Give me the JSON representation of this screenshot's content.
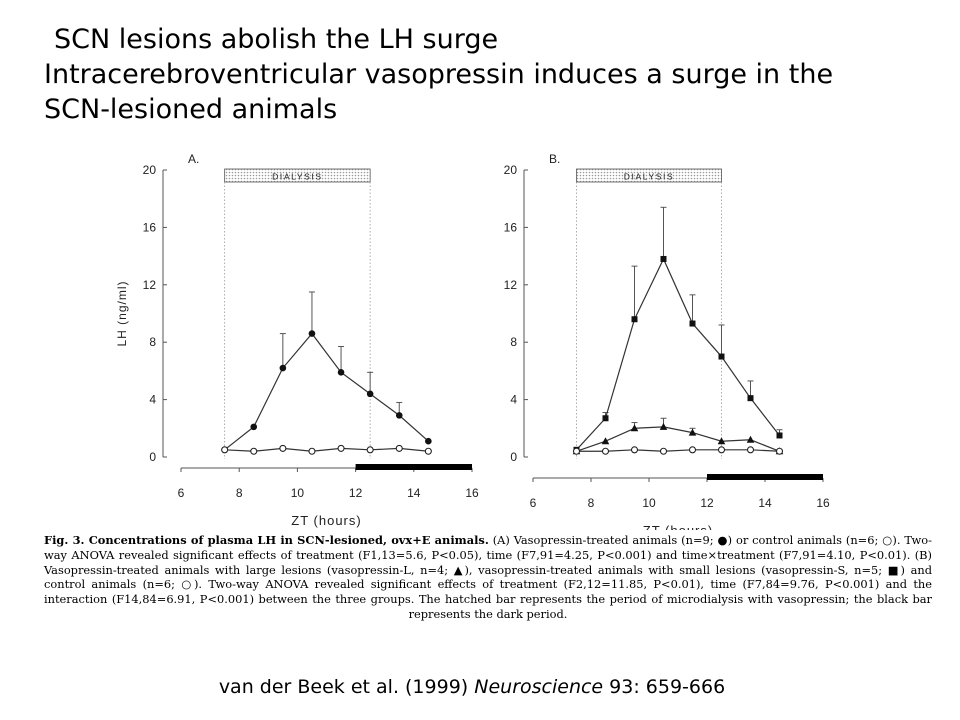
{
  "slide": {
    "title_line1": "SCN lesions abolish the LH surge",
    "title_line2": "Intracerebroventricular vasopressin induces a surge in the",
    "title_line3": "SCN-lesioned animals"
  },
  "caption": {
    "lead": "Fig. 3. Concentrations of plasma LH in SCN-lesioned, ovx+E animals.",
    "body": "(A) Vasopressin-treated animals (n=9; ●) or control animals (n=6; ○). Two-way ANOVA revealed significant effects of treatment (F1,13=5.6, P<0.05), time (F7,91=4.25, P<0.001) and time×treatment (F7,91=4.10, P<0.01). (B) Vasopressin-treated animals with large lesions (vasopressin-L, n=4; ▲), vasopressin-treated animals with small lesions (vasopressin-S, n=5; ■) and control animals (n=6; ○). Two-way ANOVA revealed significant effects of treatment (F2,12=11.85, P<0.01), time (F7,84=9.76, P<0.001) and the interaction (F14,84=6.91, P<0.001) between the three groups. The hatched bar represents the period of microdialysis with vasopressin; the black bar represents the dark period."
  },
  "citation": {
    "authors": "van der Beek et al. (1999) ",
    "journal": "Neuroscience",
    "ref": " 93: 659-666"
  },
  "chart_data": [
    {
      "type": "line",
      "panel_label": "A.",
      "xlabel": "ZT (hours)",
      "ylabel": "LH (ng/ml)",
      "xlim": [
        6,
        16
      ],
      "ylim": [
        0,
        20
      ],
      "xticks": [
        6,
        8,
        10,
        12,
        14,
        16
      ],
      "yticks": [
        0,
        4,
        8,
        12,
        16,
        20
      ],
      "dialysis": {
        "label": "DIALYSIS",
        "start": 7.5,
        "end": 12.5
      },
      "dark_period": {
        "start": 12,
        "end": 16
      },
      "series": [
        {
          "marker": "filled-circle",
          "x": [
            7.5,
            8.5,
            9.5,
            10.5,
            11.5,
            12.5,
            13.5,
            14.5
          ],
          "y": [
            0.5,
            2.1,
            6.2,
            8.6,
            5.9,
            4.4,
            2.9,
            1.1
          ],
          "err": [
            0,
            0,
            2.4,
            2.9,
            1.8,
            1.5,
            0.9,
            0
          ]
        },
        {
          "marker": "open-circle",
          "x": [
            7.5,
            8.5,
            9.5,
            10.5,
            11.5,
            12.5,
            13.5,
            14.5
          ],
          "y": [
            0.5,
            0.4,
            0.6,
            0.4,
            0.6,
            0.5,
            0.6,
            0.4
          ],
          "err": [
            0,
            0,
            0,
            0,
            0,
            0,
            0,
            0
          ]
        }
      ]
    },
    {
      "type": "line",
      "panel_label": "B.",
      "xlabel": "ZT (hours)",
      "ylabel": "",
      "xlim": [
        6,
        16
      ],
      "ylim": [
        0,
        20
      ],
      "xticks": [
        6,
        8,
        10,
        12,
        14,
        16
      ],
      "yticks": [
        0,
        4,
        8,
        12,
        16,
        20
      ],
      "dialysis": {
        "label": "DIALYSIS",
        "start": 7.5,
        "end": 12.5
      },
      "dark_period": {
        "start": 12,
        "end": 16
      },
      "series": [
        {
          "marker": "filled-square",
          "x": [
            7.5,
            8.5,
            9.5,
            10.5,
            11.5,
            12.5,
            13.5,
            14.5
          ],
          "y": [
            0.5,
            2.7,
            9.6,
            13.8,
            9.3,
            7.0,
            4.1,
            1.5
          ],
          "err": [
            0,
            0.4,
            3.7,
            3.6,
            2.0,
            2.2,
            1.2,
            0.4
          ]
        },
        {
          "marker": "filled-triangle",
          "x": [
            7.5,
            8.5,
            9.5,
            10.5,
            11.5,
            12.5,
            13.5,
            14.5
          ],
          "y": [
            0.4,
            1.1,
            2.0,
            2.1,
            1.7,
            1.1,
            1.2,
            0.4
          ],
          "err": [
            0,
            0,
            0.4,
            0.6,
            0.3,
            0,
            0,
            0
          ]
        },
        {
          "marker": "open-circle",
          "x": [
            7.5,
            8.5,
            9.5,
            10.5,
            11.5,
            12.5,
            13.5,
            14.5
          ],
          "y": [
            0.4,
            0.4,
            0.5,
            0.4,
            0.5,
            0.5,
            0.5,
            0.4
          ],
          "err": [
            0,
            0,
            0,
            0,
            0,
            0,
            0,
            0
          ]
        }
      ]
    }
  ]
}
